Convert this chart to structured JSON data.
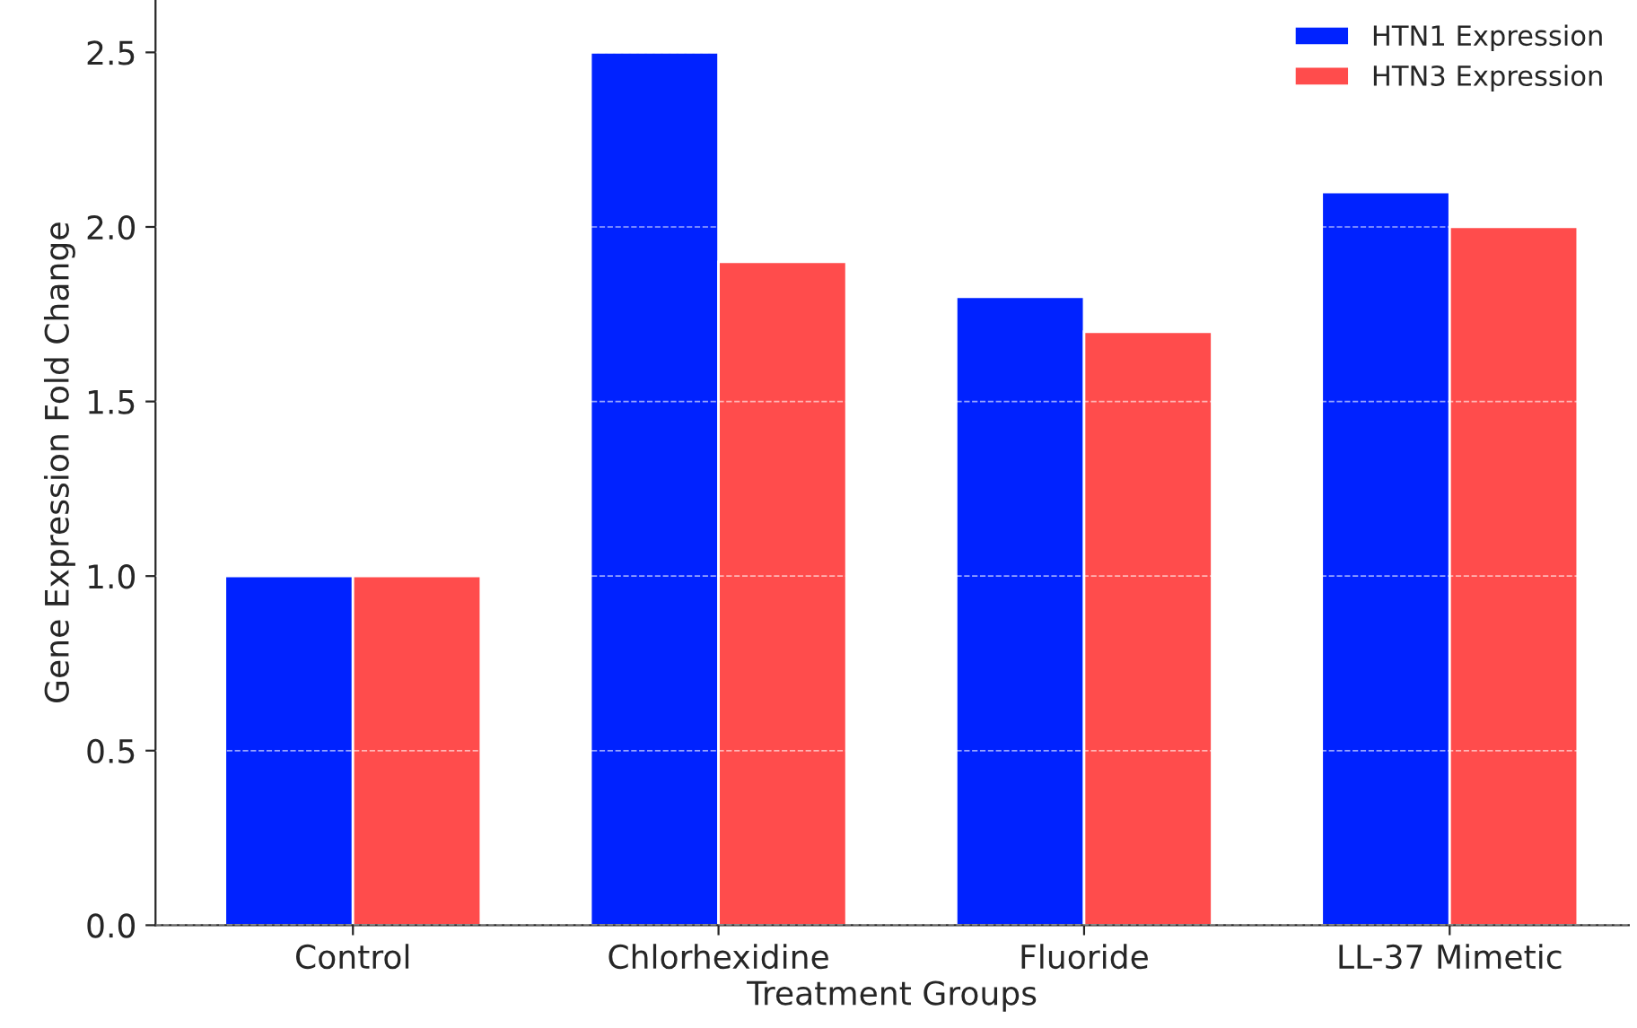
{
  "chart_data": {
    "type": "bar",
    "xlabel": "Treatment Groups",
    "ylabel": "Gene Expression Fold Change",
    "categories": [
      "Control",
      "Chlorhexidine",
      "Fluoride",
      "LL-37 Mimetic"
    ],
    "series": [
      {
        "name": "HTN1 Expression",
        "color": "#0022ff",
        "values": [
          1.0,
          2.5,
          1.8,
          2.1
        ]
      },
      {
        "name": "HTN3 Expression",
        "color": "#ff4c4c",
        "values": [
          1.0,
          1.9,
          1.7,
          2.0
        ]
      }
    ],
    "ylim": [
      0,
      2.65
    ],
    "yticks": [
      {
        "value": 0,
        "label": "0.0"
      },
      0.5,
      {
        "value": 1,
        "label": "1.0"
      },
      1.5,
      {
        "value": 2,
        "label": "2.0"
      },
      2.5
    ],
    "grid": "y",
    "legend": "top right"
  }
}
